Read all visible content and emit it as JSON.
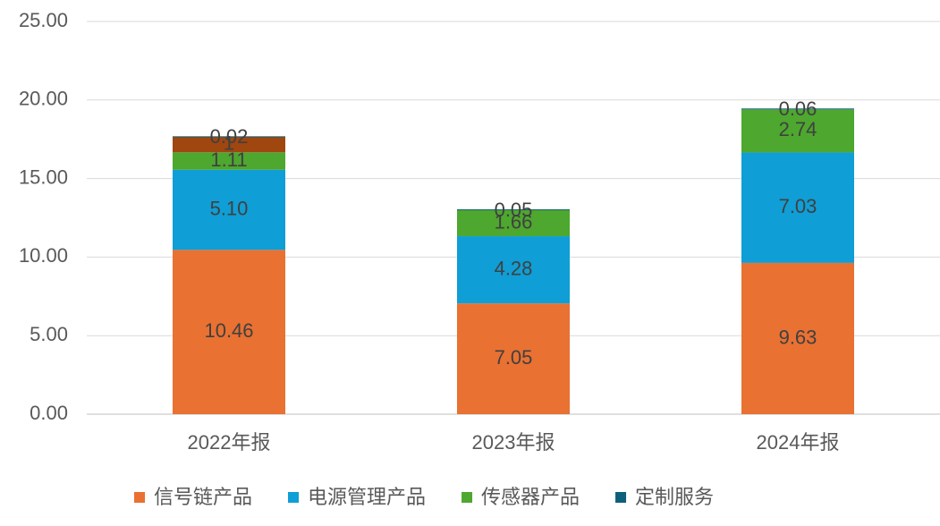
{
  "chart_data": {
    "type": "stacked_bar",
    "categories": [
      "2022年报",
      "2023年报",
      "2024年报"
    ],
    "series": [
      {
        "name": "信号链产品",
        "color": "#E97132",
        "values": [
          10.46,
          7.05,
          9.63
        ],
        "value_labels": [
          "10.46",
          "7.05",
          "9.63"
        ]
      },
      {
        "name": "电源管理产品",
        "color": "#0F9ED5",
        "values": [
          5.1,
          4.28,
          7.03
        ],
        "value_labels": [
          "5.10",
          "4.28",
          "7.03"
        ]
      },
      {
        "name": "传感器产品",
        "color": "#4EA72E",
        "values": [
          1.11,
          1.66,
          2.74
        ],
        "value_labels": [
          "1.11",
          "1.66",
          "2.74"
        ]
      },
      {
        "color": "#A0460F",
        "values": [
          1,
          null,
          null
        ],
        "value_labels": [
          "1",
          null,
          null
        ]
      },
      {
        "name": "定制服务",
        "color": "#0E5F7A",
        "values": [
          0.02,
          0.05,
          0.06
        ],
        "value_labels": [
          "0.02",
          "0.05",
          "0.06"
        ]
      }
    ],
    "ylim": [
      0,
      25
    ],
    "yticks": [
      {
        "value": 0,
        "label": "0.00"
      },
      {
        "value": 5,
        "label": "5.00"
      },
      {
        "value": 10,
        "label": "10.00"
      },
      {
        "value": 15,
        "label": "15.00"
      },
      {
        "value": 20,
        "label": "20.00"
      },
      {
        "value": 25,
        "label": "25.00"
      }
    ],
    "grid": true
  }
}
